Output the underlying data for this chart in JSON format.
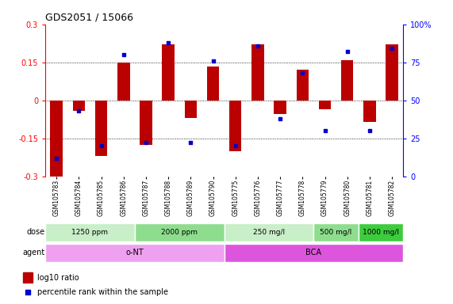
{
  "title": "GDS2051 / 15066",
  "samples": [
    "GSM105783",
    "GSM105784",
    "GSM105785",
    "GSM105786",
    "GSM105787",
    "GSM105788",
    "GSM105789",
    "GSM105790",
    "GSM105775",
    "GSM105776",
    "GSM105777",
    "GSM105778",
    "GSM105779",
    "GSM105780",
    "GSM105781",
    "GSM105782"
  ],
  "log10_ratio": [
    -0.3,
    -0.04,
    -0.22,
    0.148,
    -0.175,
    0.22,
    -0.07,
    0.132,
    -0.2,
    0.22,
    -0.055,
    0.12,
    -0.035,
    0.16,
    -0.085,
    0.22
  ],
  "percentile_rank": [
    12,
    43,
    20,
    80,
    22,
    88,
    22,
    76,
    20,
    86,
    38,
    68,
    30,
    82,
    30,
    84
  ],
  "dose_groups": [
    {
      "label": "1250 ppm",
      "start": 0,
      "end": 3,
      "color": "#c8efc8"
    },
    {
      "label": "2000 ppm",
      "start": 4,
      "end": 7,
      "color": "#8edd8e"
    },
    {
      "label": "250 mg/l",
      "start": 8,
      "end": 11,
      "color": "#c8efc8"
    },
    {
      "label": "500 mg/l",
      "start": 12,
      "end": 13,
      "color": "#8edd8e"
    },
    {
      "label": "1000 mg/l",
      "start": 14,
      "end": 15,
      "color": "#3dcc3d"
    }
  ],
  "agent_groups": [
    {
      "label": "o-NT",
      "start": 0,
      "end": 7,
      "color": "#f0a0f0"
    },
    {
      "label": "BCA",
      "start": 8,
      "end": 15,
      "color": "#dd55dd"
    }
  ],
  "bar_color": "#bb0000",
  "dot_color": "#0000cc",
  "ylim": [
    -0.3,
    0.3
  ],
  "yticks_left": [
    -0.3,
    -0.15,
    0,
    0.15,
    0.3
  ],
  "yticks_right": [
    0,
    25,
    50,
    75,
    100
  ],
  "hlines": [
    -0.15,
    0.0,
    0.15
  ],
  "bar_width": 0.55,
  "bg_color": "#ffffff"
}
